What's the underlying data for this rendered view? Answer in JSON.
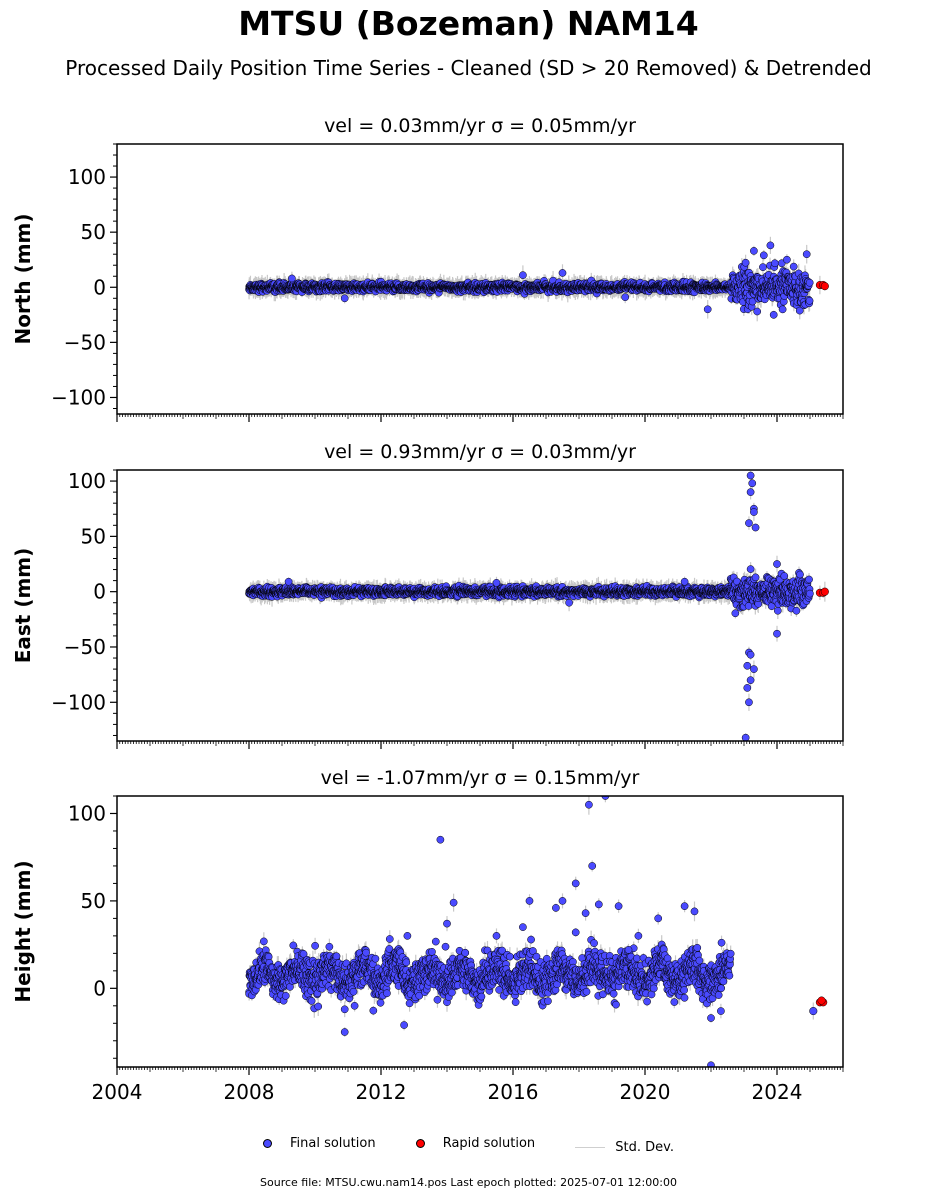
{
  "title": "MTSU (Bozeman) NAM14",
  "subtitle": "Processed Daily Position Time Series - Cleaned (SD > 20 Removed) & Detrended",
  "legend": {
    "final": "Final solution",
    "rapid": "Rapid solution",
    "stddev": "Std. Dev."
  },
  "footer": "Source file: MTSU.cwu.nam14.pos  Last epoch plotted: 2025-07-01 12:00:00",
  "colors": {
    "final": "#4a4aff",
    "final_edge": "#000000",
    "rapid": "#ff0000",
    "stddev": "#c8c8c8"
  },
  "chart_data": [
    {
      "type": "scatter",
      "title": "vel = 0.03mm/yr   σ = 0.05mm/yr",
      "ylabel": "North (mm)",
      "xlim": [
        2004,
        2026
      ],
      "ylim": [
        -115,
        130
      ],
      "yticks": [
        -100,
        -50,
        0,
        50,
        100
      ],
      "xticks": [
        2004,
        2008,
        2012,
        2016,
        2020,
        2024
      ],
      "show_xticklabels": false,
      "grid": false,
      "series": [
        {
          "name": "Final solution",
          "segments": [
            {
              "x_start": 2008.0,
              "x_end": 2022.6,
              "baseline": 0,
              "scatter_sd": 1.8
            },
            {
              "x_start": 2022.6,
              "x_end": 2025.0,
              "baseline": 0,
              "scatter_sd": 7.5
            }
          ],
          "outliers": [
            [
              2009.3,
              8
            ],
            [
              2010.9,
              -10
            ],
            [
              2016.3,
              11
            ],
            [
              2017.5,
              13
            ],
            [
              2019.4,
              -9
            ],
            [
              2021.9,
              -20
            ],
            [
              2023.3,
              33
            ],
            [
              2023.6,
              29
            ],
            [
              2023.8,
              38
            ],
            [
              2024.9,
              30
            ],
            [
              2023.4,
              -22
            ],
            [
              2023.9,
              -25
            ],
            [
              2024.3,
              25
            ]
          ]
        },
        {
          "name": "Rapid solution",
          "points": [
            [
              2025.3,
              2
            ],
            [
              2025.4,
              2
            ],
            [
              2025.45,
              1
            ]
          ]
        }
      ]
    },
    {
      "type": "scatter",
      "title": "vel = 0.93mm/yr   σ = 0.03mm/yr",
      "ylabel": "East (mm)",
      "xlim": [
        2004,
        2026
      ],
      "ylim": [
        -135,
        110
      ],
      "yticks": [
        -100,
        -50,
        0,
        50,
        100
      ],
      "xticks": [
        2004,
        2008,
        2012,
        2016,
        2020,
        2024
      ],
      "show_xticklabels": false,
      "grid": false,
      "series": [
        {
          "name": "Final solution",
          "segments": [
            {
              "x_start": 2008.0,
              "x_end": 2022.6,
              "baseline": 0,
              "scatter_sd": 1.8
            },
            {
              "x_start": 2022.6,
              "x_end": 2025.0,
              "baseline": 0,
              "scatter_sd": 6.5
            }
          ],
          "outliers": [
            [
              2009.2,
              9
            ],
            [
              2015.5,
              8
            ],
            [
              2017.7,
              -10
            ],
            [
              2021.2,
              9
            ],
            [
              2023.2,
              105
            ],
            [
              2023.25,
              98
            ],
            [
              2023.2,
              90
            ],
            [
              2023.3,
              75
            ],
            [
              2023.15,
              62
            ],
            [
              2023.35,
              58
            ],
            [
              2023.3,
              72
            ],
            [
              2023.1,
              -67
            ],
            [
              2023.15,
              -55
            ],
            [
              2023.2,
              -57
            ],
            [
              2023.2,
              -80
            ],
            [
              2023.1,
              -87
            ],
            [
              2023.3,
              -70
            ],
            [
              2023.15,
              -100
            ],
            [
              2023.05,
              -132
            ],
            [
              2024.0,
              25
            ],
            [
              2024.0,
              -38
            ]
          ]
        },
        {
          "name": "Rapid solution",
          "points": [
            [
              2025.3,
              -1
            ],
            [
              2025.4,
              -1
            ],
            [
              2025.45,
              0
            ]
          ]
        }
      ]
    },
    {
      "type": "scatter",
      "title": "vel = -1.07mm/yr   σ = 0.15mm/yr",
      "ylabel": "Height (mm)",
      "xlim": [
        2004,
        2026
      ],
      "ylim": [
        -45,
        110
      ],
      "yticks": [
        0,
        50,
        100
      ],
      "xticks": [
        2004,
        2008,
        2012,
        2016,
        2020,
        2024
      ],
      "xticklabels": [
        "2004",
        "2008",
        "2012",
        "2016",
        "2020",
        "2024"
      ],
      "show_xticklabels": true,
      "grid": false,
      "series": [
        {
          "name": "Final solution",
          "segments": [
            {
              "x_start": 2008.0,
              "x_end": 2022.6,
              "baseline": 8,
              "seasonal_amp": 5,
              "scatter_sd": 5.5
            }
          ],
          "outliers": [
            [
              2010.9,
              -25
            ],
            [
              2010.9,
              -12
            ],
            [
              2011.2,
              -10
            ],
            [
              2012.7,
              -21
            ],
            [
              2013.8,
              85
            ],
            [
              2014.2,
              49
            ],
            [
              2014.0,
              37
            ],
            [
              2015.5,
              30
            ],
            [
              2016.3,
              35
            ],
            [
              2017.3,
              46
            ],
            [
              2017.5,
              50
            ],
            [
              2017.9,
              32
            ],
            [
              2018.4,
              70
            ],
            [
              2018.3,
              105
            ],
            [
              2018.8,
              110
            ],
            [
              2018.6,
              48
            ],
            [
              2019.2,
              47
            ],
            [
              2019.8,
              30
            ],
            [
              2020.4,
              40
            ],
            [
              2021.2,
              47
            ],
            [
              2021.5,
              44
            ],
            [
              2022.0,
              -44
            ],
            [
              2022.0,
              -17
            ],
            [
              2022.3,
              -13
            ],
            [
              2012.8,
              30
            ],
            [
              2016.5,
              50
            ],
            [
              2017.9,
              60
            ],
            [
              2018.2,
              43
            ],
            [
              2019.5,
              22
            ]
          ]
        },
        {
          "name": "Rapid solution",
          "points": [
            [
              2025.3,
              -8
            ],
            [
              2025.4,
              -8
            ],
            [
              2025.35,
              -7
            ]
          ]
        },
        {
          "name": "Final solution (post)",
          "points": [
            [
              2025.1,
              -13
            ]
          ]
        }
      ]
    }
  ]
}
